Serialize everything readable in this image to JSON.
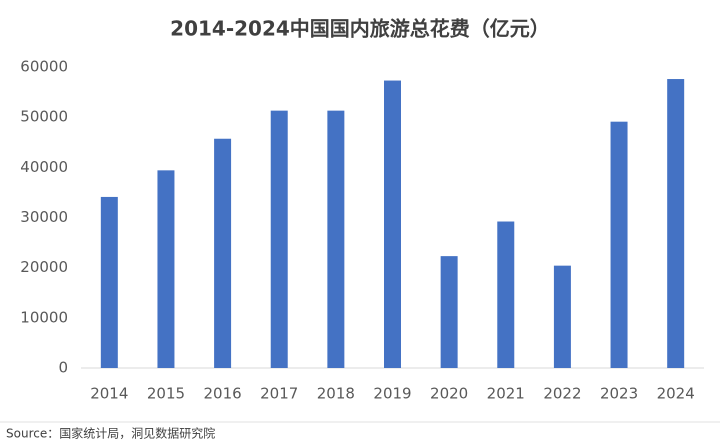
{
  "chart_data": {
    "type": "bar",
    "title": "2014-2024中国国内旅游总花费（亿元）",
    "categories": [
      "2014",
      "2015",
      "2016",
      "2017",
      "2018",
      "2019",
      "2020",
      "2021",
      "2022",
      "2023",
      "2024"
    ],
    "values": [
      34100,
      39400,
      45700,
      51300,
      51300,
      57300,
      22300,
      29200,
      20400,
      49100,
      57600
    ],
    "color": "#4472c4",
    "ylim": [
      0,
      60000
    ],
    "yticks": [
      0,
      10000,
      20000,
      30000,
      40000,
      50000,
      60000
    ],
    "grid": false,
    "source": "Source：国家统计局，洞见数据研究院"
  }
}
